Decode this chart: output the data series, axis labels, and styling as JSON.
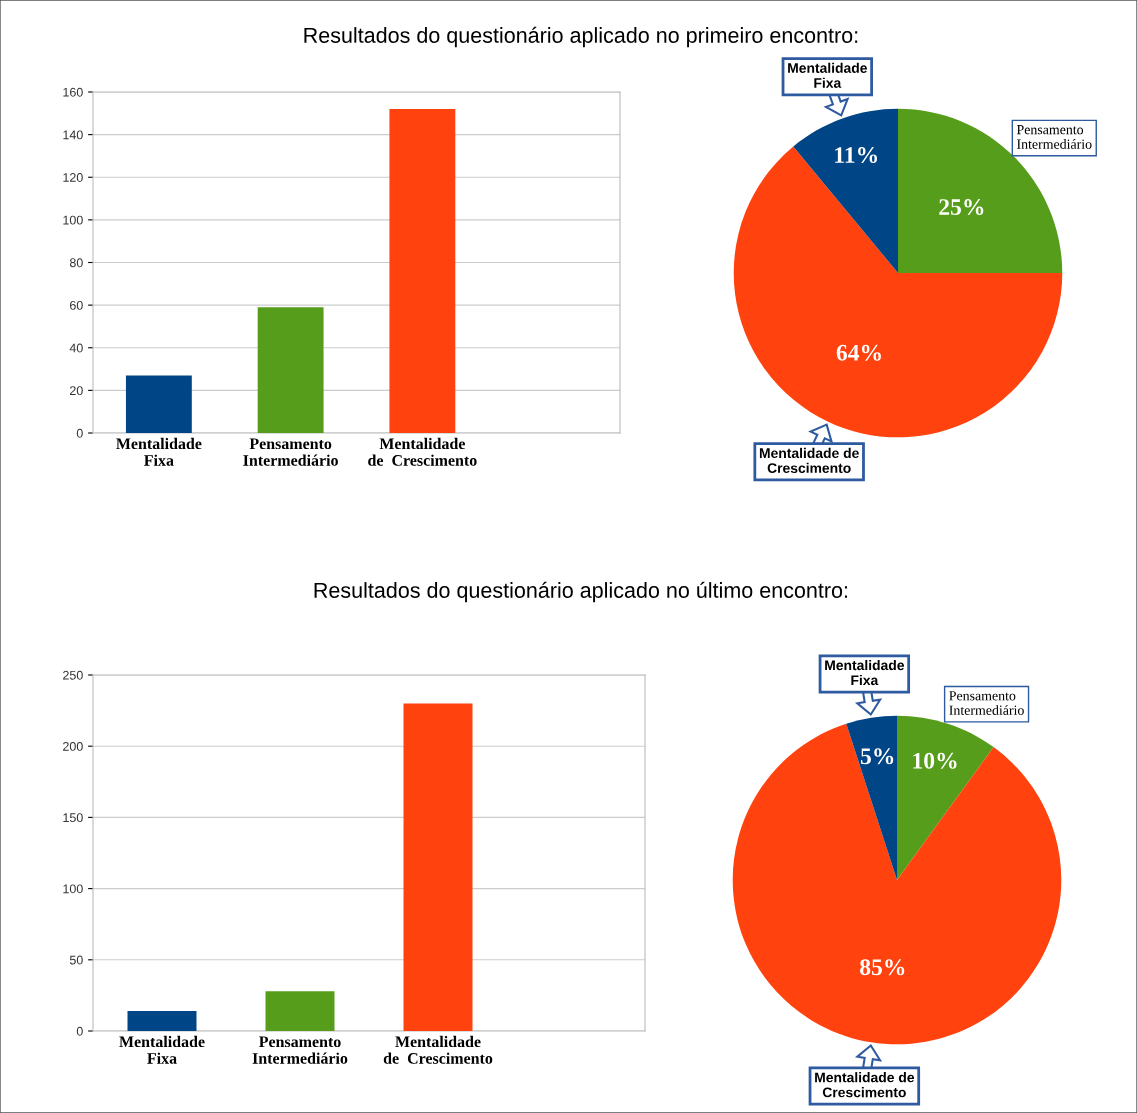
{
  "chart_data": [
    {
      "type": "bar",
      "title": "Resultados do questionário aplicado no primeiro encontro:",
      "categories": [
        "Mentalidade\nFixa",
        "Pensamento\nIntermediário",
        "Mentalidade\nde  Crescimento"
      ],
      "values": [
        27,
        59,
        152
      ],
      "colors": [
        "#004586",
        "#579d1c",
        "#ff420e"
      ],
      "ylim": [
        0,
        160
      ],
      "yticks": [
        0,
        20,
        40,
        60,
        80,
        100,
        120,
        140,
        160
      ],
      "grid": "y"
    },
    {
      "type": "pie",
      "categories": [
        "Pensamento\nIntermediário",
        "Mentalidade de\nCrescimento",
        "Mentalidade\nFixa"
      ],
      "values": [
        25,
        64,
        11
      ],
      "colors": [
        "#579d1c",
        "#ff420e",
        "#004586"
      ],
      "value_labels": [
        "25%",
        "64%",
        "11%"
      ]
    },
    {
      "type": "bar",
      "title": "Resultados do questionário aplicado no último encontro:",
      "categories": [
        "Mentalidade\nFixa",
        "Pensamento\nIntermediário",
        "Mentalidade\nde  Crescimento"
      ],
      "values": [
        14,
        28,
        230
      ],
      "colors": [
        "#004586",
        "#579d1c",
        "#ff420e"
      ],
      "ylim": [
        0,
        250
      ],
      "yticks": [
        0,
        50,
        100,
        150,
        200,
        250
      ],
      "grid": "y"
    },
    {
      "type": "pie",
      "categories": [
        "Pensamento\nIntermediário",
        "Mentalidade de\nCrescimento",
        "Mentalidade\nFixa"
      ],
      "values": [
        10,
        85,
        5
      ],
      "colors": [
        "#579d1c",
        "#ff420e",
        "#004586"
      ],
      "value_labels": [
        "10%",
        "85%",
        "5%"
      ]
    }
  ]
}
